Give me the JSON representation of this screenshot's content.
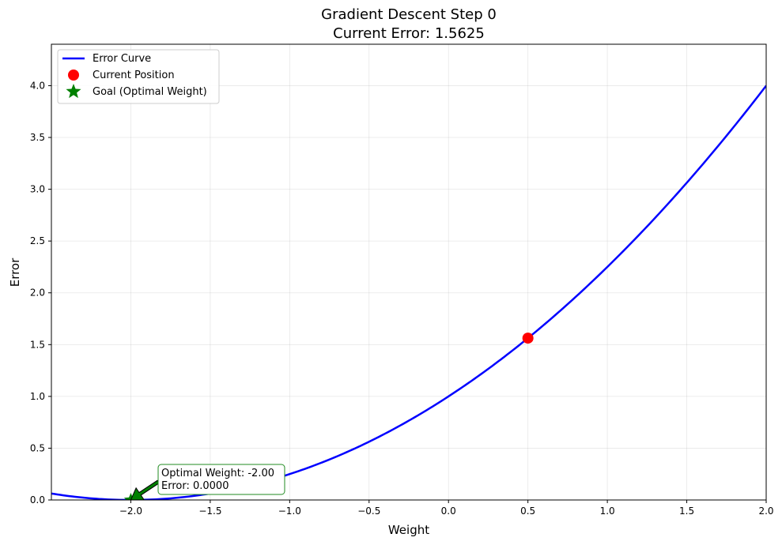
{
  "chart_data": {
    "type": "line",
    "title_line1": "Gradient Descent Step 0",
    "title_line2": "Current Error: 1.5625",
    "xlabel": "Weight",
    "ylabel": "Error",
    "xlim": [
      -2.5,
      2.0
    ],
    "ylim": [
      0.0,
      4.4
    ],
    "xticks": [
      -2.0,
      -1.5,
      -1.0,
      -0.5,
      0.0,
      0.5,
      1.0,
      1.5,
      2.0
    ],
    "xtick_labels": [
      "−2.0",
      "−1.5",
      "−1.0",
      "−0.5",
      "0.0",
      "0.5",
      "1.0",
      "1.5",
      "2.0"
    ],
    "yticks": [
      0.0,
      0.5,
      1.0,
      1.5,
      2.0,
      2.5,
      3.0,
      3.5,
      4.0
    ],
    "ytick_labels": [
      "0.0",
      "0.5",
      "1.0",
      "1.5",
      "2.0",
      "2.5",
      "3.0",
      "3.5",
      "4.0"
    ],
    "grid": true,
    "legend_position": "top-left",
    "series": [
      {
        "name": "Error Curve",
        "kind": "line",
        "color": "#0000ff",
        "function": "0.25*(x+2)^2",
        "x": [
          -2.5,
          -2.25,
          -2.0,
          -1.75,
          -1.5,
          -1.25,
          -1.0,
          -0.75,
          -0.5,
          -0.25,
          0.0,
          0.25,
          0.5,
          0.75,
          1.0,
          1.25,
          1.5,
          1.75,
          2.0
        ],
        "y": [
          0.0625,
          0.015625,
          0.0,
          0.015625,
          0.0625,
          0.140625,
          0.25,
          0.390625,
          0.5625,
          0.765625,
          1.0,
          1.265625,
          1.5625,
          1.890625,
          2.25,
          2.640625,
          3.0625,
          3.515625,
          4.0
        ]
      },
      {
        "name": "Current Position",
        "kind": "point",
        "marker": "circle",
        "color": "#ff0000",
        "x": 0.5,
        "y": 1.5625
      },
      {
        "name": "Goal (Optimal Weight)",
        "kind": "point",
        "marker": "star",
        "color": "#008000",
        "x": -2.0,
        "y": 0.0
      }
    ],
    "annotation": {
      "line1": "Optimal Weight: -2.00",
      "line2": "Error: 0.0000",
      "target_x": -2.0,
      "target_y": 0.0,
      "box_color": "#228b22",
      "arrow_color": "#008000"
    }
  }
}
